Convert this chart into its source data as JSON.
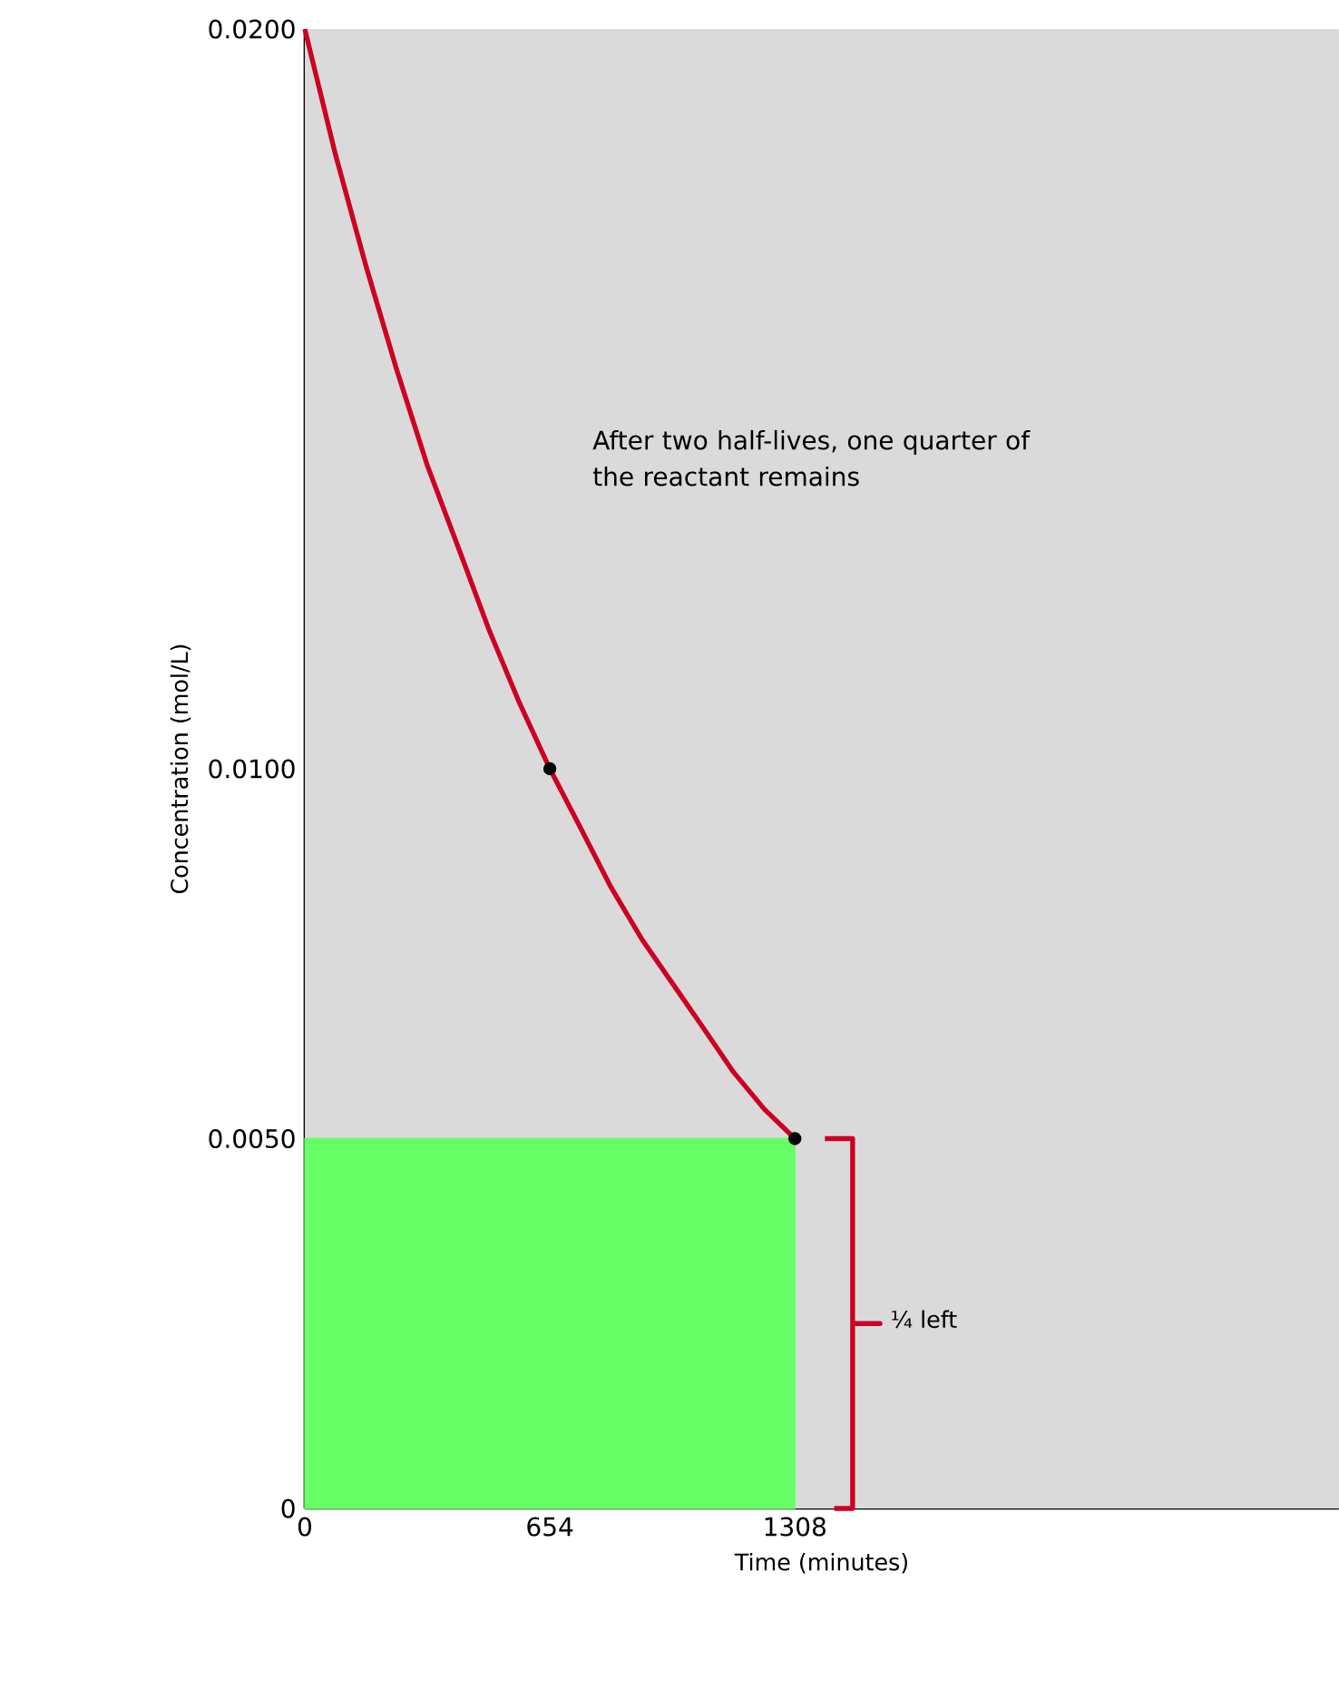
{
  "chart_data": {
    "type": "line",
    "xlabel": "Time (minutes)",
    "ylabel": "Concentration (mol/L)",
    "xlim": [
      0,
      2760
    ],
    "ylim": [
      0,
      0.02
    ],
    "xticks": [
      0,
      654,
      1308
    ],
    "yticks": [
      {
        "value": 0,
        "label": "0"
      },
      {
        "value": 0.005,
        "label": "0.0050"
      },
      {
        "value": 0.01,
        "label": "0.0100"
      },
      {
        "value": 0.02,
        "label": "0.0200"
      }
    ],
    "series": [
      {
        "type": "area",
        "color": "#66ff66",
        "x": [
          0,
          1308
        ],
        "values": [
          0.005,
          0.005
        ]
      },
      {
        "color": "#cc0022",
        "x": [
          0,
          82,
          163,
          245,
          327,
          409,
          490,
          572,
          654,
          736,
          817,
          899,
          981,
          1063,
          1144,
          1226,
          1308
        ],
        "values": [
          0.02,
          0.0183,
          0.0168,
          0.0154,
          0.0141,
          0.013,
          0.0119,
          0.0109,
          0.01,
          0.0092,
          0.0084,
          0.0077,
          0.0071,
          0.0065,
          0.0059,
          0.0054,
          0.005
        ]
      },
      {
        "type": "scatter",
        "color": "#000000",
        "x": [
          654,
          1308
        ],
        "values": [
          0.01,
          0.005
        ]
      },
      {
        "color": "#cc0022",
        "x": [
          1388,
          1462,
          1462,
          1535,
          1462,
          1462,
          1413
        ],
        "values": [
          0.005,
          0.005,
          0.0025,
          0.0025,
          0.0025,
          0,
          0
        ]
      }
    ],
    "annotations": [
      "After two half-lives, one quarter of the reactant remains",
      "¼ left"
    ]
  }
}
